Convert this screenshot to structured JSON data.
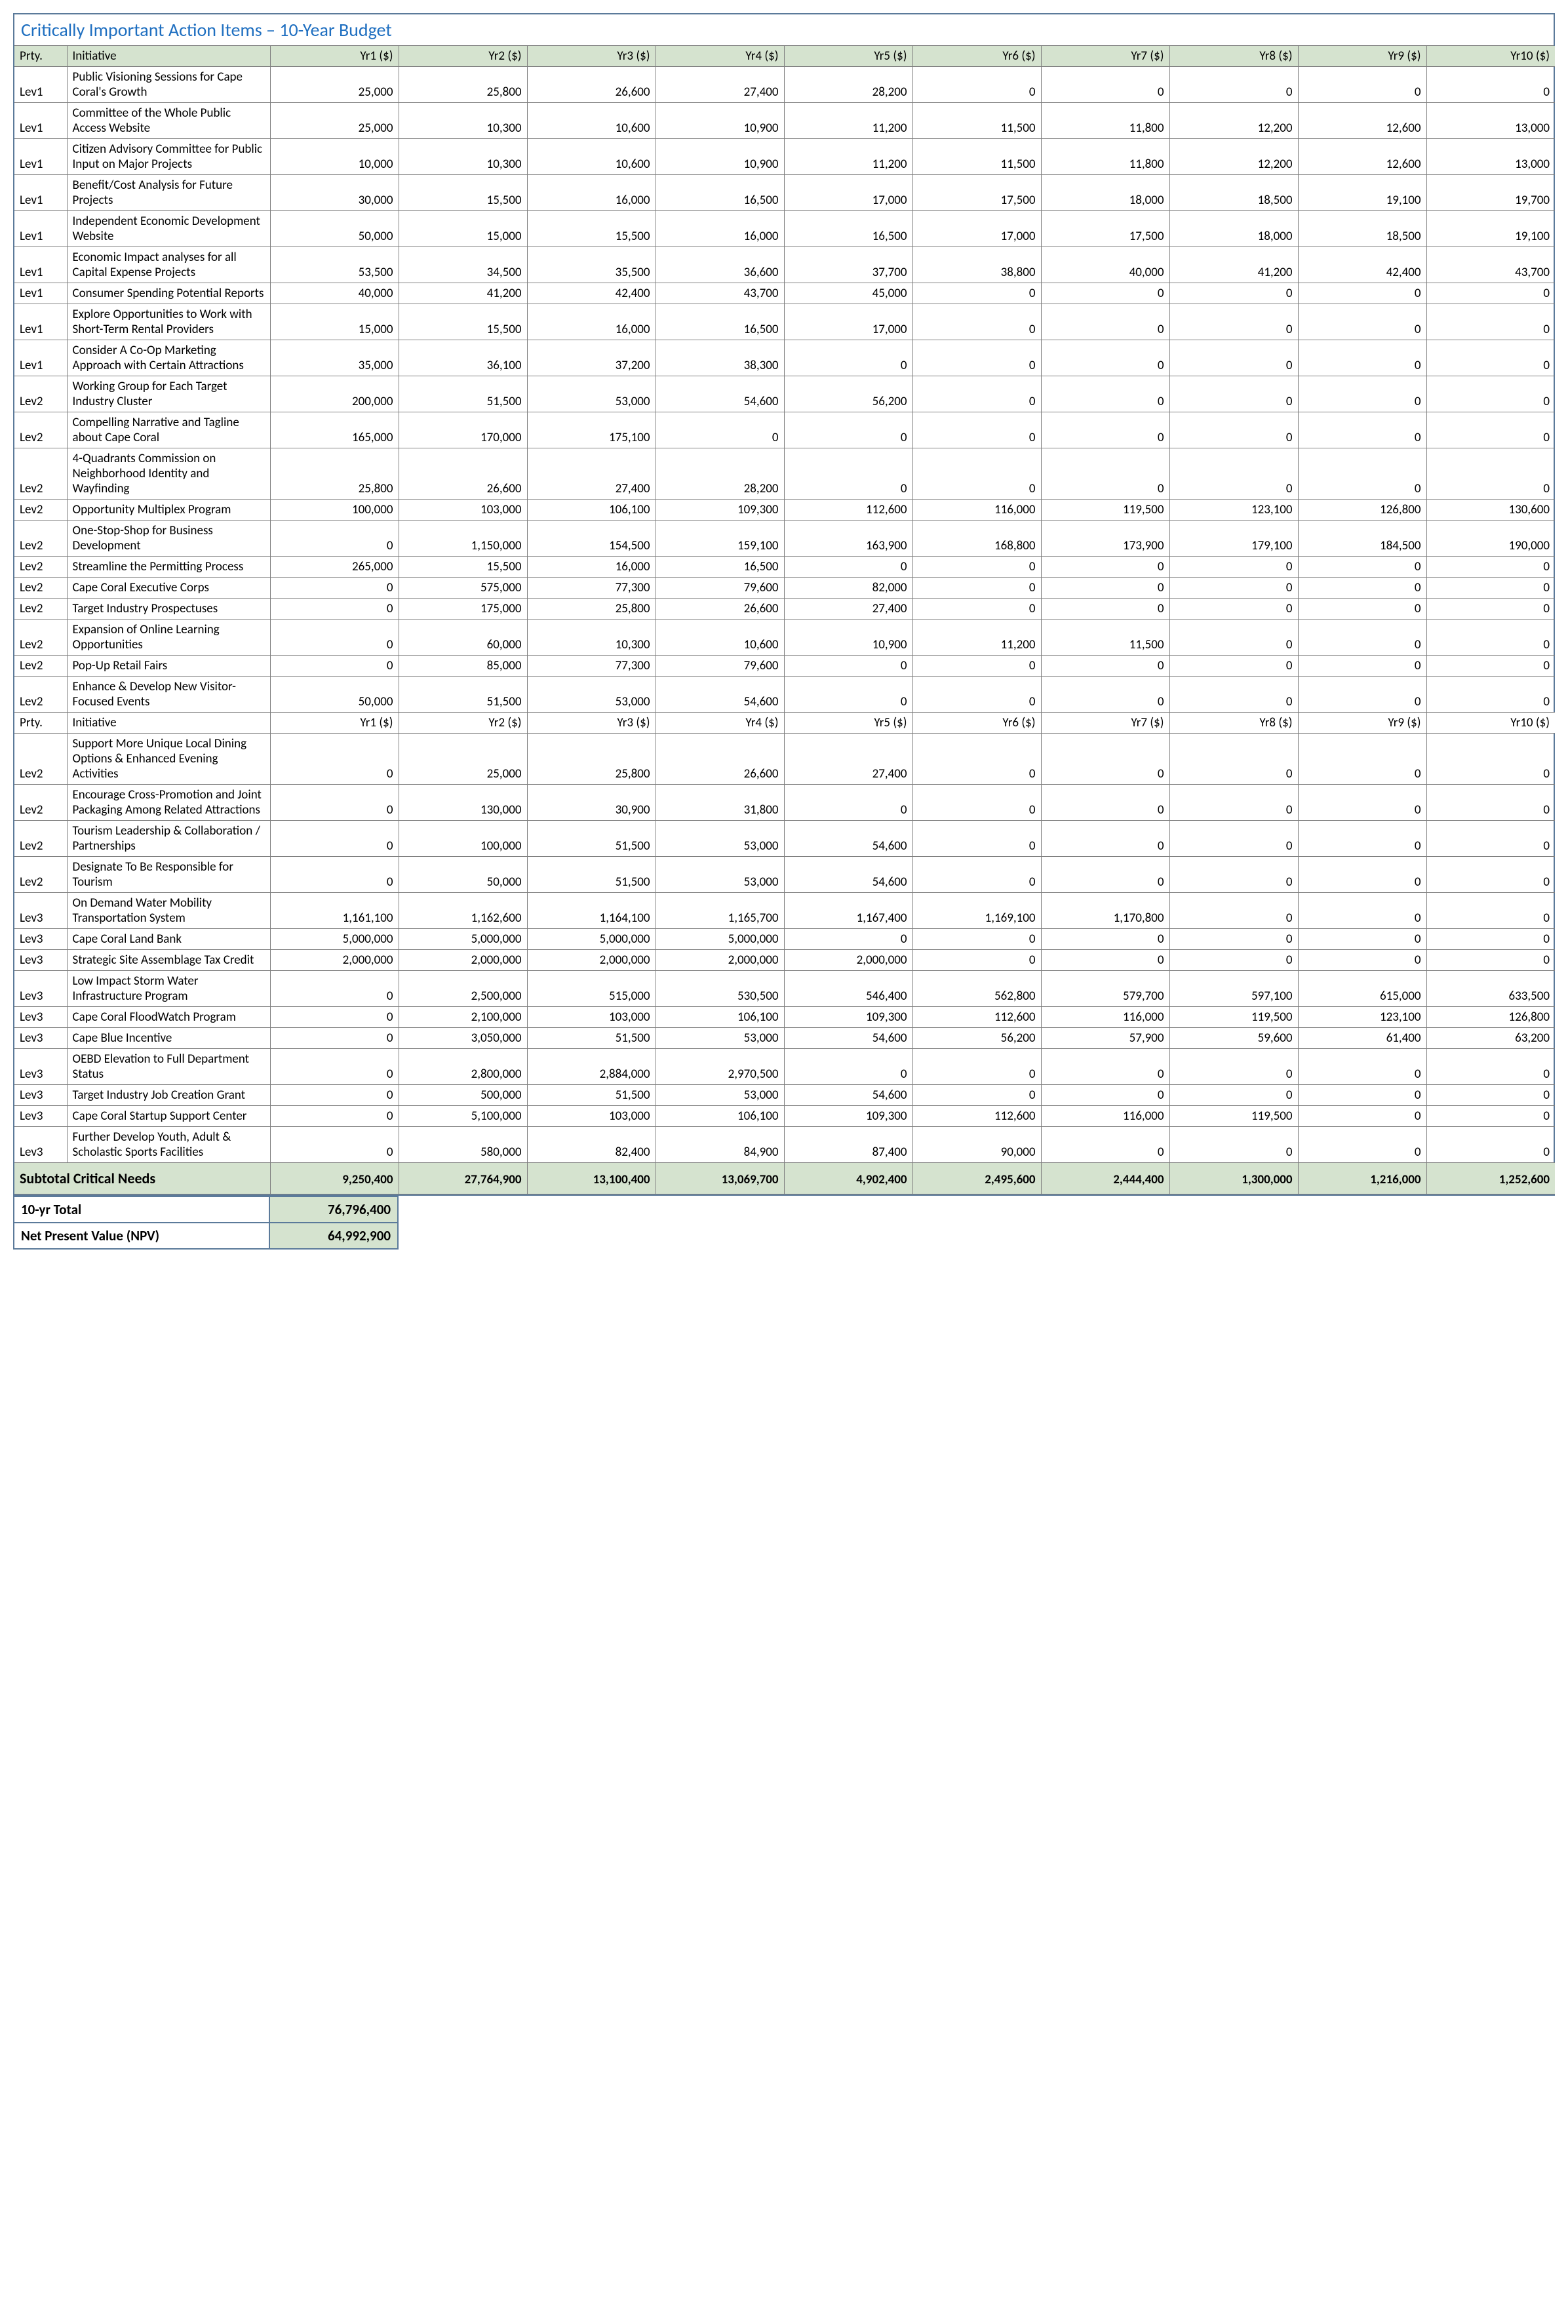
{
  "title": "Critically Important Action Items – 10-Year Budget",
  "headers": {
    "prty": "Prty.",
    "init": "Initiative",
    "yrs": [
      "Yr1 ($)",
      "Yr2 ($)",
      "Yr3 ($)",
      "Yr4 ($)",
      "Yr5 ($)",
      "Yr6 ($)",
      "Yr7 ($)",
      "Yr8 ($)",
      "Yr9 ($)",
      "Yr10 ($)"
    ]
  },
  "rows": [
    {
      "prty": "Lev1",
      "init": "Public Visioning Sessions for Cape Coral's Growth",
      "v": [
        "25,000",
        "25,800",
        "26,600",
        "27,400",
        "28,200",
        "0",
        "0",
        "0",
        "0",
        "0"
      ]
    },
    {
      "prty": "Lev1",
      "init": "Committee of the Whole Public Access Website",
      "v": [
        "25,000",
        "10,300",
        "10,600",
        "10,900",
        "11,200",
        "11,500",
        "11,800",
        "12,200",
        "12,600",
        "13,000"
      ]
    },
    {
      "prty": "Lev1",
      "init": "Citizen Advisory Committee for Public Input on Major Projects",
      "v": [
        "10,000",
        "10,300",
        "10,600",
        "10,900",
        "11,200",
        "11,500",
        "11,800",
        "12,200",
        "12,600",
        "13,000"
      ]
    },
    {
      "prty": "Lev1",
      "init": "Benefit/Cost Analysis for Future Projects",
      "v": [
        "30,000",
        "15,500",
        "16,000",
        "16,500",
        "17,000",
        "17,500",
        "18,000",
        "18,500",
        "19,100",
        "19,700"
      ]
    },
    {
      "prty": "Lev1",
      "init": "Independent Economic Development Website",
      "v": [
        "50,000",
        "15,000",
        "15,500",
        "16,000",
        "16,500",
        "17,000",
        "17,500",
        "18,000",
        "18,500",
        "19,100"
      ]
    },
    {
      "prty": "Lev1",
      "init": "Economic Impact analyses for all Capital Expense Projects",
      "v": [
        "53,500",
        "34,500",
        "35,500",
        "36,600",
        "37,700",
        "38,800",
        "40,000",
        "41,200",
        "42,400",
        "43,700"
      ]
    },
    {
      "prty": "Lev1",
      "init": "Consumer Spending Potential Reports",
      "v": [
        "40,000",
        "41,200",
        "42,400",
        "43,700",
        "45,000",
        "0",
        "0",
        "0",
        "0",
        "0"
      ]
    },
    {
      "prty": "Lev1",
      "init": "Explore Opportunities to Work with Short-Term Rental Providers",
      "v": [
        "15,000",
        "15,500",
        "16,000",
        "16,500",
        "17,000",
        "0",
        "0",
        "0",
        "0",
        "0"
      ]
    },
    {
      "prty": "Lev1",
      "init": "Consider A Co-Op Marketing Approach with Certain Attractions",
      "v": [
        "35,000",
        "36,100",
        "37,200",
        "38,300",
        "0",
        "0",
        "0",
        "0",
        "0",
        "0"
      ]
    },
    {
      "prty": "Lev2",
      "init": "Working Group for Each Target Industry Cluster",
      "v": [
        "200,000",
        "51,500",
        "53,000",
        "54,600",
        "56,200",
        "0",
        "0",
        "0",
        "0",
        "0"
      ]
    },
    {
      "prty": "Lev2",
      "init": "Compelling Narrative and Tagline about Cape Coral",
      "v": [
        "165,000",
        "170,000",
        "175,100",
        "0",
        "0",
        "0",
        "0",
        "0",
        "0",
        "0"
      ]
    },
    {
      "prty": "Lev2",
      "init": "4-Quadrants Commission on Neighborhood Identity and Wayfinding",
      "v": [
        "25,800",
        "26,600",
        "27,400",
        "28,200",
        "0",
        "0",
        "0",
        "0",
        "0",
        "0"
      ]
    },
    {
      "prty": "Lev2",
      "init": "Opportunity Multiplex Program",
      "v": [
        "100,000",
        "103,000",
        "106,100",
        "109,300",
        "112,600",
        "116,000",
        "119,500",
        "123,100",
        "126,800",
        "130,600"
      ]
    },
    {
      "prty": "Lev2",
      "init": "One-Stop-Shop for Business Development",
      "v": [
        "0",
        "1,150,000",
        "154,500",
        "159,100",
        "163,900",
        "168,800",
        "173,900",
        "179,100",
        "184,500",
        "190,000"
      ]
    },
    {
      "prty": "Lev2",
      "init": "Streamline the Permitting Process",
      "v": [
        "265,000",
        "15,500",
        "16,000",
        "16,500",
        "0",
        "0",
        "0",
        "0",
        "0",
        "0"
      ]
    },
    {
      "prty": "Lev2",
      "init": "Cape Coral Executive Corps",
      "v": [
        "0",
        "575,000",
        "77,300",
        "79,600",
        "82,000",
        "0",
        "0",
        "0",
        "0",
        "0"
      ]
    },
    {
      "prty": "Lev2",
      "init": "Target Industry Prospectuses",
      "v": [
        "0",
        "175,000",
        "25,800",
        "26,600",
        "27,400",
        "0",
        "0",
        "0",
        "0",
        "0"
      ]
    },
    {
      "prty": "Lev2",
      "init": "Expansion of Online Learning Opportunities",
      "v": [
        "0",
        "60,000",
        "10,300",
        "10,600",
        "10,900",
        "11,200",
        "11,500",
        "0",
        "0",
        "0"
      ]
    },
    {
      "prty": "Lev2",
      "init": "Pop-Up Retail Fairs",
      "v": [
        "0",
        "85,000",
        "77,300",
        "79,600",
        "0",
        "0",
        "0",
        "0",
        "0",
        "0"
      ]
    },
    {
      "prty": "Lev2",
      "init": "Enhance & Develop New Visitor-Focused Events",
      "v": [
        "50,000",
        "51,500",
        "53,000",
        "54,600",
        "0",
        "0",
        "0",
        "0",
        "0",
        "0"
      ]
    },
    {
      "repeatHeader": true
    },
    {
      "prty": "Lev2",
      "init": "Support More Unique Local Dining Options & Enhanced Evening Activities",
      "v": [
        "0",
        "25,000",
        "25,800",
        "26,600",
        "27,400",
        "0",
        "0",
        "0",
        "0",
        "0"
      ]
    },
    {
      "prty": "Lev2",
      "init": "Encourage Cross-Promotion and Joint Packaging Among Related Attractions",
      "v": [
        "0",
        "130,000",
        "30,900",
        "31,800",
        "0",
        "0",
        "0",
        "0",
        "0",
        "0"
      ]
    },
    {
      "prty": "Lev2",
      "init": "Tourism Leadership & Collaboration / Partnerships",
      "v": [
        "0",
        "100,000",
        "51,500",
        "53,000",
        "54,600",
        "0",
        "0",
        "0",
        "0",
        "0"
      ]
    },
    {
      "prty": "Lev2",
      "init": "Designate To Be Responsible for Tourism",
      "v": [
        "0",
        "50,000",
        "51,500",
        "53,000",
        "54,600",
        "0",
        "0",
        "0",
        "0",
        "0"
      ]
    },
    {
      "prty": "Lev3",
      "init": "On Demand Water Mobility Transportation System",
      "v": [
        "1,161,100",
        "1,162,600",
        "1,164,100",
        "1,165,700",
        "1,167,400",
        "1,169,100",
        "1,170,800",
        "0",
        "0",
        "0"
      ]
    },
    {
      "prty": "Lev3",
      "init": "Cape Coral Land Bank",
      "v": [
        "5,000,000",
        "5,000,000",
        "5,000,000",
        "5,000,000",
        "0",
        "0",
        "0",
        "0",
        "0",
        "0"
      ]
    },
    {
      "prty": "Lev3",
      "init": "Strategic Site Assemblage Tax Credit",
      "v": [
        "2,000,000",
        "2,000,000",
        "2,000,000",
        "2,000,000",
        "2,000,000",
        "0",
        "0",
        "0",
        "0",
        "0"
      ]
    },
    {
      "prty": "Lev3",
      "init": "Low Impact Storm Water Infrastructure Program",
      "v": [
        "0",
        "2,500,000",
        "515,000",
        "530,500",
        "546,400",
        "562,800",
        "579,700",
        "597,100",
        "615,000",
        "633,500"
      ]
    },
    {
      "prty": "Lev3",
      "init": "Cape Coral FloodWatch Program",
      "v": [
        "0",
        "2,100,000",
        "103,000",
        "106,100",
        "109,300",
        "112,600",
        "116,000",
        "119,500",
        "123,100",
        "126,800"
      ]
    },
    {
      "prty": "Lev3",
      "init": "Cape Blue Incentive",
      "v": [
        "0",
        "3,050,000",
        "51,500",
        "53,000",
        "54,600",
        "56,200",
        "57,900",
        "59,600",
        "61,400",
        "63,200"
      ]
    },
    {
      "prty": "Lev3",
      "init": "OEBD Elevation to Full Department Status",
      "v": [
        "0",
        "2,800,000",
        "2,884,000",
        "2,970,500",
        "0",
        "0",
        "0",
        "0",
        "0",
        "0"
      ]
    },
    {
      "prty": "Lev3",
      "init": "Target Industry Job Creation Grant",
      "v": [
        "0",
        "500,000",
        "51,500",
        "53,000",
        "54,600",
        "0",
        "0",
        "0",
        "0",
        "0"
      ]
    },
    {
      "prty": "Lev3",
      "init": "Cape Coral Startup Support Center",
      "v": [
        "0",
        "5,100,000",
        "103,000",
        "106,100",
        "109,300",
        "112,600",
        "116,000",
        "119,500",
        "0",
        "0"
      ]
    },
    {
      "prty": "Lev3",
      "init": "Further Develop Youth, Adult & Scholastic Sports Facilities",
      "v": [
        "0",
        "580,000",
        "82,400",
        "84,900",
        "87,400",
        "90,000",
        "0",
        "0",
        "0",
        "0"
      ]
    }
  ],
  "subtotal": {
    "label": "Subtotal Critical Needs",
    "v": [
      "9,250,400",
      "27,764,900",
      "13,100,400",
      "13,069,700",
      "4,902,400",
      "2,495,600",
      "2,444,400",
      "1,300,000",
      "1,216,000",
      "1,252,600"
    ]
  },
  "footer": [
    {
      "label": "10-yr Total",
      "value": "76,796,400"
    },
    {
      "label": "Net Present Value (NPV)",
      "value": "64,992,900"
    }
  ],
  "style": {
    "header_bg": "#d5e3cf",
    "border_color": "#808080",
    "outer_border": "#5b7a9a",
    "title_color": "#1f6fc0"
  }
}
